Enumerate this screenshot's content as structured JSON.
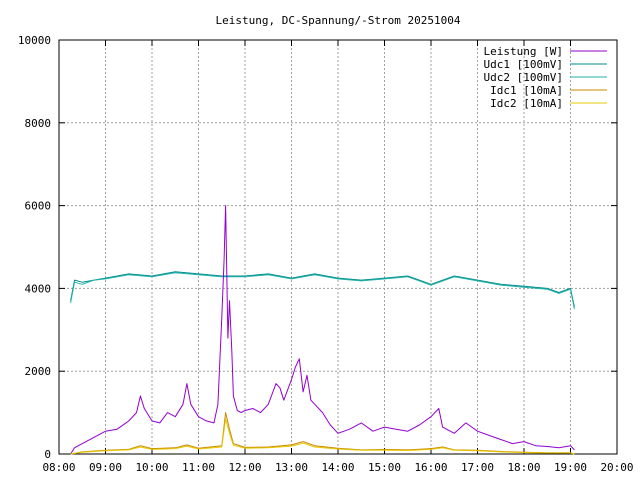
{
  "chart_data": {
    "type": "line",
    "title": "Leistung, DC-Spannung/-Strom 20251004",
    "xlabel": "",
    "ylabel": "",
    "xlim": [
      "08:00",
      "20:00"
    ],
    "ylim": [
      0,
      10000
    ],
    "grid": true,
    "legend_position": "top-right",
    "x_ticks": [
      "08:00",
      "09:00",
      "10:00",
      "11:00",
      "12:00",
      "13:00",
      "14:00",
      "15:00",
      "16:00",
      "17:00",
      "18:00",
      "19:00",
      "20:00"
    ],
    "y_ticks": [
      "0",
      "2000",
      "4000",
      "6000",
      "8000",
      "10000"
    ],
    "series": [
      {
        "name": "Leistung [W]",
        "color": "#9400d3",
        "x": [
          "08:15",
          "08:20",
          "08:30",
          "08:45",
          "09:00",
          "09:15",
          "09:30",
          "09:40",
          "09:45",
          "09:50",
          "10:00",
          "10:10",
          "10:20",
          "10:30",
          "10:40",
          "10:45",
          "10:50",
          "11:00",
          "11:10",
          "11:20",
          "11:25",
          "11:30",
          "11:33",
          "11:35",
          "11:38",
          "11:40",
          "11:43",
          "11:45",
          "11:50",
          "11:55",
          "12:00",
          "12:10",
          "12:20",
          "12:30",
          "12:40",
          "12:45",
          "12:50",
          "13:00",
          "13:05",
          "13:10",
          "13:15",
          "13:20",
          "13:25",
          "13:30",
          "13:40",
          "13:50",
          "14:00",
          "14:15",
          "14:30",
          "14:45",
          "15:00",
          "15:15",
          "15:30",
          "15:45",
          "16:00",
          "16:10",
          "16:15",
          "16:30",
          "16:45",
          "17:00",
          "17:15",
          "17:30",
          "17:45",
          "18:00",
          "18:15",
          "18:30",
          "18:45",
          "19:00",
          "19:05"
        ],
        "y": [
          0,
          150,
          250,
          400,
          550,
          600,
          800,
          1000,
          1400,
          1100,
          800,
          750,
          1000,
          900,
          1200,
          1700,
          1200,
          900,
          800,
          750,
          1200,
          3300,
          4700,
          6000,
          2800,
          3700,
          2500,
          1400,
          1050,
          1000,
          1050,
          1100,
          1000,
          1200,
          1700,
          1600,
          1300,
          1800,
          2100,
          2300,
          1500,
          1900,
          1300,
          1200,
          1000,
          700,
          500,
          600,
          750,
          550,
          650,
          600,
          550,
          700,
          900,
          1100,
          650,
          500,
          750,
          550,
          450,
          350,
          250,
          300,
          200,
          180,
          150,
          200,
          100
        ]
      },
      {
        "name": "Udc1 [100mV]",
        "color": "#008b8b",
        "x": [
          "08:15",
          "08:20",
          "08:30",
          "08:45",
          "09:00",
          "09:30",
          "10:00",
          "10:30",
          "11:00",
          "11:30",
          "12:00",
          "12:30",
          "13:00",
          "13:30",
          "14:00",
          "14:30",
          "15:00",
          "15:30",
          "16:00",
          "16:30",
          "17:00",
          "17:30",
          "18:00",
          "18:30",
          "18:45",
          "19:00",
          "19:05"
        ],
        "y": [
          3700,
          4200,
          4150,
          4200,
          4250,
          4350,
          4300,
          4400,
          4350,
          4300,
          4300,
          4350,
          4250,
          4350,
          4250,
          4200,
          4250,
          4300,
          4100,
          4300,
          4200,
          4100,
          4050,
          4000,
          3900,
          4000,
          3550
        ]
      },
      {
        "name": "Udc2 [100mV]",
        "color": "#20b2aa",
        "x": [
          "08:15",
          "08:20",
          "08:30",
          "08:45",
          "09:00",
          "09:30",
          "10:00",
          "10:30",
          "11:00",
          "11:30",
          "12:00",
          "12:30",
          "13:00",
          "13:30",
          "14:00",
          "14:30",
          "15:00",
          "15:30",
          "16:00",
          "16:30",
          "17:00",
          "17:30",
          "18:00",
          "18:30",
          "18:45",
          "19:00",
          "19:05"
        ],
        "y": [
          3650,
          4150,
          4100,
          4200,
          4230,
          4330,
          4280,
          4380,
          4330,
          4280,
          4280,
          4330,
          4230,
          4330,
          4230,
          4180,
          4230,
          4280,
          4080,
          4280,
          4180,
          4080,
          4030,
          3980,
          3880,
          3980,
          3500
        ]
      },
      {
        "name": "Idc1 [10mA]",
        "color": "#cc8800",
        "x": [
          "08:15",
          "08:30",
          "09:00",
          "09:30",
          "09:45",
          "10:00",
          "10:30",
          "10:45",
          "11:00",
          "11:30",
          "11:35",
          "11:40",
          "11:45",
          "12:00",
          "12:30",
          "13:00",
          "13:15",
          "13:30",
          "14:00",
          "14:30",
          "15:00",
          "15:30",
          "16:00",
          "16:15",
          "16:30",
          "17:00",
          "17:30",
          "18:00",
          "18:30",
          "19:00",
          "19:05"
        ],
        "y": [
          0,
          50,
          90,
          110,
          200,
          130,
          150,
          220,
          140,
          200,
          1000,
          600,
          250,
          160,
          170,
          220,
          300,
          200,
          140,
          100,
          110,
          100,
          130,
          170,
          100,
          90,
          60,
          40,
          30,
          30,
          0
        ]
      },
      {
        "name": "Idc2 [10mA]",
        "color": "#e6c800",
        "x": [
          "08:15",
          "08:30",
          "09:00",
          "09:30",
          "09:45",
          "10:00",
          "10:30",
          "10:45",
          "11:00",
          "11:30",
          "11:35",
          "11:40",
          "11:45",
          "12:00",
          "12:30",
          "13:00",
          "13:15",
          "13:30",
          "14:00",
          "14:30",
          "15:00",
          "15:30",
          "16:00",
          "16:15",
          "16:30",
          "17:00",
          "17:30",
          "18:00",
          "18:30",
          "19:00",
          "19:05"
        ],
        "y": [
          0,
          40,
          80,
          100,
          170,
          110,
          130,
          190,
          120,
          170,
          850,
          500,
          210,
          140,
          150,
          190,
          260,
          170,
          120,
          90,
          95,
          85,
          110,
          150,
          90,
          80,
          50,
          35,
          25,
          25,
          0
        ]
      }
    ]
  }
}
